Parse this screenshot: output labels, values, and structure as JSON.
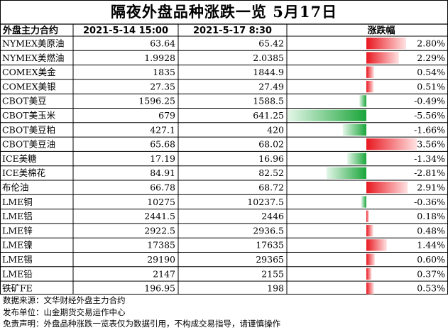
{
  "title": "隔夜外盘品种涨跌一览 5月17日",
  "headers": {
    "name": "外盘主力合约",
    "prev": "2021-5-14 15:00",
    "curr": "2021-5-17 8:30",
    "change": "涨跌幅"
  },
  "chart_data": {
    "type": "table",
    "title": "隔夜外盘品种涨跌一览 5月17日",
    "columns": [
      "外盘主力合约",
      "2021-5-14 15:00",
      "2021-5-17 8:30",
      "涨跌幅"
    ],
    "rows": [
      {
        "name": "NYMEX美原油",
        "prev": "63.64",
        "curr": "65.42",
        "pct": 2.8,
        "pct_label": "2.80%"
      },
      {
        "name": "NYMEX美燃油",
        "prev": "1.9928",
        "curr": "2.0385",
        "pct": 2.29,
        "pct_label": "2.29%"
      },
      {
        "name": "COMEX美金",
        "prev": "1835",
        "curr": "1844.9",
        "pct": 0.54,
        "pct_label": "0.54%"
      },
      {
        "name": "COMEX美银",
        "prev": "27.35",
        "curr": "27.49",
        "pct": 0.51,
        "pct_label": "0.51%"
      },
      {
        "name": "CBOT美豆",
        "prev": "1596.25",
        "curr": "1588.5",
        "pct": -0.49,
        "pct_label": "-0.49%"
      },
      {
        "name": "CBOT美玉米",
        "prev": "679",
        "curr": "641.25",
        "pct": -5.56,
        "pct_label": "-5.56%"
      },
      {
        "name": "CBOT美豆粕",
        "prev": "427.1",
        "curr": "420",
        "pct": -1.66,
        "pct_label": "-1.66%"
      },
      {
        "name": "CBOT美豆油",
        "prev": "65.68",
        "curr": "68.02",
        "pct": 3.56,
        "pct_label": "3.56%"
      },
      {
        "name": "ICE美糖",
        "prev": "17.19",
        "curr": "16.96",
        "pct": -1.34,
        "pct_label": "-1.34%"
      },
      {
        "name": "ICE美棉花",
        "prev": "84.91",
        "curr": "82.52",
        "pct": -2.81,
        "pct_label": "-2.81%"
      },
      {
        "name": "布伦油",
        "prev": "66.78",
        "curr": "68.72",
        "pct": 2.91,
        "pct_label": "2.91%"
      },
      {
        "name": "LME铜",
        "prev": "10275",
        "curr": "10237.5",
        "pct": -0.36,
        "pct_label": "-0.36%"
      },
      {
        "name": "LME铝",
        "prev": "2441.5",
        "curr": "2446",
        "pct": 0.18,
        "pct_label": "0.18%"
      },
      {
        "name": "LME锌",
        "prev": "2922.5",
        "curr": "2936.5",
        "pct": 0.48,
        "pct_label": "0.48%"
      },
      {
        "name": "LME镍",
        "prev": "17385",
        "curr": "17635",
        "pct": 1.44,
        "pct_label": "1.44%"
      },
      {
        "name": "LME锡",
        "prev": "29190",
        "curr": "29365",
        "pct": 0.6,
        "pct_label": "0.60%"
      },
      {
        "name": "LME铅",
        "prev": "2147",
        "curr": "2155",
        "pct": 0.37,
        "pct_label": "0.37%"
      },
      {
        "name": "铁矿FE",
        "prev": "196.95",
        "curr": "198",
        "pct": 0.53,
        "pct_label": "0.53%"
      }
    ],
    "bar_colors": {
      "positive": "#e8171f",
      "negative": "#1aa53a"
    }
  },
  "notes": {
    "source": "数据来源：文华财经外盘主力合约",
    "publisher": "发布单位：山金期货交易运作中心",
    "disclaimer": "免责声明：外盘品种涨跌一览表仅为数据引用，不构成交易指导，请谨慎操作"
  }
}
